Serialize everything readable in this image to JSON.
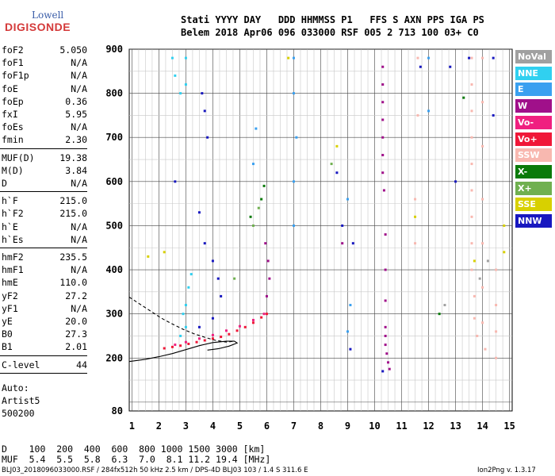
{
  "logo": {
    "line1": "Lowell",
    "line2": "DIGISONDE"
  },
  "header": {
    "line1": "Stati YYYY DAY   DDD HHMMSS P1   FFS S AXN PPS IGA PS",
    "line2": "Belem 2018 Apr06 096 033000 RSF 005 2 713 100 03+ C0"
  },
  "params_group1": [
    {
      "k": "foF2",
      "v": "5.050"
    },
    {
      "k": "foF1",
      "v": "N/A"
    },
    {
      "k": "foF1p",
      "v": "N/A"
    },
    {
      "k": "foE",
      "v": "N/A"
    },
    {
      "k": "foEp",
      "v": "0.36"
    },
    {
      "k": "fxI",
      "v": "5.95"
    },
    {
      "k": "foEs",
      "v": "N/A"
    },
    {
      "k": "fmin",
      "v": "2.30"
    }
  ],
  "params_group2": [
    {
      "k": "MUF(D)",
      "v": "19.38"
    },
    {
      "k": "M(D)",
      "v": "3.84"
    },
    {
      "k": "D",
      "v": "N/A"
    }
  ],
  "params_group3": [
    {
      "k": "h`F",
      "v": "215.0"
    },
    {
      "k": "h`F2",
      "v": "215.0"
    },
    {
      "k": "h`E",
      "v": "N/A"
    },
    {
      "k": "h`Es",
      "v": "N/A"
    }
  ],
  "params_group4": [
    {
      "k": "hmF2",
      "v": "235.5"
    },
    {
      "k": "hmF1",
      "v": "N/A"
    },
    {
      "k": "hmE",
      "v": "110.0"
    },
    {
      "k": "yF2",
      "v": "27.2"
    },
    {
      "k": "yF1",
      "v": "N/A"
    },
    {
      "k": "yE",
      "v": "20.0"
    },
    {
      "k": "B0",
      "v": "27.3"
    },
    {
      "k": "B1",
      "v": "2.01"
    }
  ],
  "params_group5": [
    {
      "k": "C-level",
      "v": "44"
    }
  ],
  "auto": {
    "l1": "Auto:",
    "l2": "Artist5",
    "l3": "500200"
  },
  "legend": [
    {
      "label": "NoVal",
      "color": "#a0a0a0"
    },
    {
      "label": "NNE",
      "color": "#30d0f0"
    },
    {
      "label": "E",
      "color": "#3aa0f0"
    },
    {
      "label": "W",
      "color": "#a0108a"
    },
    {
      "label": "Vo-",
      "color": "#f02080"
    },
    {
      "label": "Vo+",
      "color": "#f01838"
    },
    {
      "label": "SSW",
      "color": "#f8b8b0"
    },
    {
      "label": "X-",
      "color": "#0a7a0a"
    },
    {
      "label": "X+",
      "color": "#70b050"
    },
    {
      "label": "SSE",
      "color": "#d8d000"
    },
    {
      "label": "NNW",
      "color": "#1818c0"
    }
  ],
  "bottom_table": {
    "d_row": "D    100  200  400  600  800 1000 1500 3000 [km]",
    "muf_row": "MUF  5.4  5.5  5.8  6.3  7.0  8.1 11.2 19.4 [MHz]"
  },
  "footer": {
    "left": "BLJ03_2018096033000.RSF / 284fx512h 50 kHz 2.5 km / DPS-4D BLJ03 103 / 1.4 S 311.6 E",
    "right": "Ion2Png v. 1.3.17"
  },
  "chart_data": {
    "type": "scatter",
    "xlabel": "",
    "ylabel": "",
    "xlim": [
      0.9,
      15.1
    ],
    "ylim": [
      80,
      900
    ],
    "x_ticks": [
      1,
      2,
      3,
      4,
      5,
      6,
      7,
      8,
      9,
      10,
      11,
      12,
      13,
      14,
      15
    ],
    "y_ticks": [
      80,
      200,
      300,
      400,
      500,
      600,
      700,
      800,
      900
    ],
    "grid": true,
    "series": [
      {
        "name": "Vo+",
        "color": "#f01838",
        "points": [
          [
            2.2,
            222
          ],
          [
            2.5,
            225
          ],
          [
            2.8,
            228
          ],
          [
            3.1,
            232
          ],
          [
            3.4,
            236
          ],
          [
            3.7,
            240
          ],
          [
            4.0,
            244
          ],
          [
            4.3,
            248
          ],
          [
            4.6,
            254
          ],
          [
            4.9,
            262
          ],
          [
            5.2,
            270
          ],
          [
            5.5,
            280
          ],
          [
            5.8,
            292
          ],
          [
            6.0,
            300
          ]
        ]
      },
      {
        "name": "Vo-",
        "color": "#f02080",
        "points": [
          [
            2.6,
            230
          ],
          [
            3.0,
            236
          ],
          [
            3.5,
            244
          ],
          [
            4.0,
            252
          ],
          [
            4.5,
            262
          ],
          [
            5.0,
            272
          ],
          [
            5.5,
            286
          ],
          [
            5.9,
            300
          ]
        ]
      },
      {
        "name": "W",
        "color": "#a0108a",
        "points": [
          [
            6.0,
            340
          ],
          [
            6.1,
            380
          ],
          [
            6.05,
            420
          ],
          [
            5.95,
            460
          ],
          [
            8.8,
            460
          ],
          [
            10.3,
            860
          ],
          [
            10.3,
            820
          ],
          [
            10.3,
            780
          ],
          [
            10.3,
            740
          ],
          [
            10.3,
            700
          ],
          [
            10.3,
            660
          ],
          [
            10.3,
            620
          ],
          [
            10.35,
            580
          ],
          [
            10.4,
            480
          ],
          [
            10.4,
            400
          ],
          [
            10.4,
            330
          ],
          [
            10.4,
            270
          ],
          [
            10.4,
            250
          ],
          [
            10.4,
            230
          ],
          [
            10.45,
            210
          ],
          [
            10.5,
            190
          ],
          [
            10.55,
            175
          ]
        ]
      },
      {
        "name": "NNE",
        "color": "#30d0f0",
        "points": [
          [
            2.5,
            880
          ],
          [
            2.6,
            840
          ],
          [
            2.8,
            800
          ],
          [
            3.0,
            880
          ],
          [
            3.0,
            820
          ],
          [
            2.9,
            300
          ],
          [
            3.0,
            320
          ],
          [
            3.1,
            360
          ],
          [
            3.2,
            390
          ],
          [
            3.0,
            270
          ],
          [
            2.8,
            250
          ]
        ]
      },
      {
        "name": "E",
        "color": "#3aa0f0",
        "points": [
          [
            7.0,
            880
          ],
          [
            7.0,
            800
          ],
          [
            7.1,
            700
          ],
          [
            7.0,
            600
          ],
          [
            7.0,
            500
          ],
          [
            5.6,
            720
          ],
          [
            5.5,
            640
          ],
          [
            9.0,
            560
          ],
          [
            12.0,
            880
          ],
          [
            12.0,
            760
          ],
          [
            9.1,
            320
          ],
          [
            9.0,
            260
          ]
        ]
      },
      {
        "name": "SSW",
        "color": "#f8b8b0",
        "points": [
          [
            13.6,
            880
          ],
          [
            13.6,
            820
          ],
          [
            13.6,
            760
          ],
          [
            13.6,
            700
          ],
          [
            13.6,
            640
          ],
          [
            13.6,
            580
          ],
          [
            13.6,
            520
          ],
          [
            13.6,
            460
          ],
          [
            13.6,
            400
          ],
          [
            13.7,
            340
          ],
          [
            13.7,
            290
          ],
          [
            13.8,
            250
          ],
          [
            14.0,
            880
          ],
          [
            14.0,
            780
          ],
          [
            14.0,
            680
          ],
          [
            14.0,
            560
          ],
          [
            14.0,
            460
          ],
          [
            14.0,
            360
          ],
          [
            14.0,
            280
          ],
          [
            14.1,
            220
          ],
          [
            14.5,
            400
          ],
          [
            14.5,
            320
          ],
          [
            14.5,
            260
          ],
          [
            14.5,
            200
          ],
          [
            11.6,
            880
          ],
          [
            11.6,
            750
          ],
          [
            11.5,
            560
          ],
          [
            11.5,
            460
          ]
        ]
      },
      {
        "name": "X-",
        "color": "#0a7a0a",
        "points": [
          [
            5.9,
            590
          ],
          [
            5.8,
            560
          ],
          [
            5.4,
            520
          ],
          [
            13.3,
            790
          ],
          [
            12.4,
            300
          ]
        ]
      },
      {
        "name": "X+",
        "color": "#70b050",
        "points": [
          [
            5.7,
            540
          ],
          [
            5.5,
            500
          ],
          [
            4.8,
            380
          ],
          [
            8.4,
            640
          ]
        ]
      },
      {
        "name": "SSE",
        "color": "#d8d000",
        "points": [
          [
            1.6,
            430
          ],
          [
            2.2,
            440
          ],
          [
            6.8,
            880
          ],
          [
            8.6,
            680
          ],
          [
            11.5,
            520
          ],
          [
            14.8,
            500
          ],
          [
            14.8,
            440
          ],
          [
            13.7,
            420
          ]
        ]
      },
      {
        "name": "NNW",
        "color": "#1818c0",
        "points": [
          [
            2.6,
            600
          ],
          [
            3.6,
            800
          ],
          [
            3.7,
            760
          ],
          [
            3.8,
            700
          ],
          [
            3.5,
            530
          ],
          [
            3.7,
            460
          ],
          [
            4.0,
            420
          ],
          [
            4.2,
            380
          ],
          [
            4.3,
            340
          ],
          [
            4.0,
            290
          ],
          [
            3.5,
            270
          ],
          [
            8.6,
            620
          ],
          [
            8.8,
            500
          ],
          [
            9.2,
            460
          ],
          [
            9.1,
            220
          ],
          [
            10.3,
            170
          ],
          [
            11.7,
            860
          ],
          [
            12.8,
            860
          ],
          [
            13.0,
            600
          ],
          [
            13.5,
            880
          ],
          [
            14.4,
            880
          ],
          [
            14.4,
            750
          ]
        ]
      },
      {
        "name": "NoVal",
        "color": "#a0a0a0",
        "points": [
          [
            14.2,
            420
          ],
          [
            13.9,
            380
          ],
          [
            12.6,
            320
          ]
        ]
      }
    ],
    "traces": [
      {
        "style": "solid",
        "points": [
          [
            0.9,
            192
          ],
          [
            1.5,
            197
          ],
          [
            2.0,
            203
          ],
          [
            2.5,
            210
          ],
          [
            3.0,
            219
          ],
          [
            3.5,
            228
          ],
          [
            4.0,
            235
          ],
          [
            4.5,
            238
          ],
          [
            4.8,
            238
          ],
          [
            4.9,
            234
          ],
          [
            4.6,
            227
          ],
          [
            4.2,
            221
          ],
          [
            3.8,
            218
          ]
        ]
      },
      {
        "style": "dashed",
        "points": [
          [
            0.9,
            338
          ],
          [
            1.3,
            322
          ],
          [
            1.7,
            306
          ],
          [
            2.1,
            290
          ],
          [
            2.5,
            277
          ],
          [
            2.9,
            265
          ],
          [
            3.3,
            255
          ],
          [
            3.7,
            247
          ],
          [
            4.1,
            240
          ],
          [
            4.5,
            236
          ],
          [
            4.8,
            238
          ]
        ]
      }
    ]
  }
}
